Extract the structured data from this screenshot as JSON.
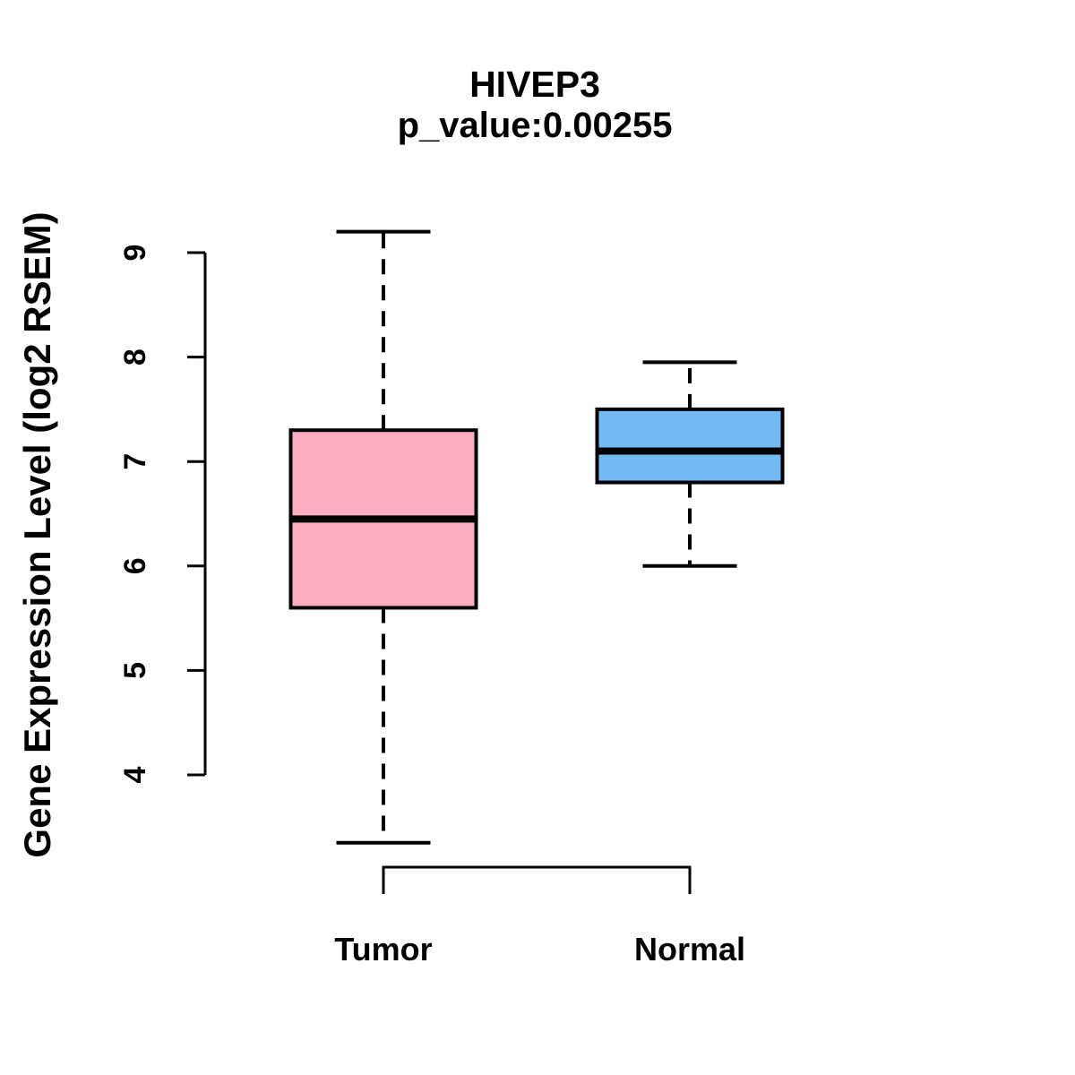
{
  "chart_data": {
    "type": "boxplot",
    "title": "HIVEP3",
    "subtitle": "p_value:0.00255",
    "ylabel": "Gene Expression Level (log2 RSEM)",
    "xlabel": "",
    "legend": "none",
    "grid": false,
    "background_color": "#FFFFFF",
    "line_color": "#000000",
    "y_axis": {
      "ticks": [
        4,
        5,
        6,
        7,
        8,
        9
      ],
      "range": [
        3.1,
        9.4
      ]
    },
    "categories": [
      "Tumor",
      "Normal"
    ],
    "series": [
      {
        "name": "Tumor",
        "box_color": "#FDAEC1",
        "whisker_low": 3.35,
        "q1": 5.6,
        "median": 6.45,
        "q3": 7.3,
        "whisker_high": 9.2
      },
      {
        "name": "Normal",
        "box_color": "#73BAF3",
        "whisker_low": 6.0,
        "q1": 6.8,
        "median": 7.1,
        "q3": 7.5,
        "whisker_high": 7.95
      }
    ]
  }
}
